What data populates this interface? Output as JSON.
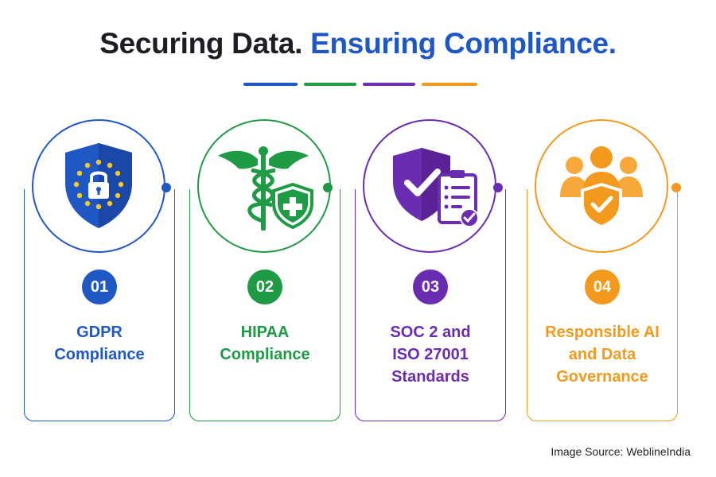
{
  "title": {
    "part1": "Securing Data.",
    "part2": "Ensuring Compliance."
  },
  "colors": {
    "blue": "#1f57c5",
    "green": "#1f9a45",
    "purple": "#6a2cb0",
    "orange": "#f39a1e",
    "dark": "#1d1d24"
  },
  "items": [
    {
      "number": "01",
      "line1": "GDPR",
      "line2": "Compliance",
      "line3": "",
      "icon": "eu-shield-lock-icon",
      "color": "#1f57c5"
    },
    {
      "number": "02",
      "line1": "HIPAA",
      "line2": "Compliance",
      "line3": "",
      "icon": "caduceus-shield-icon",
      "color": "#1f9a45"
    },
    {
      "number": "03",
      "line1": "SOC 2 and",
      "line2": "ISO 27001",
      "line3": "Standards",
      "icon": "shield-checklist-icon",
      "color": "#6a2cb0"
    },
    {
      "number": "04",
      "line1": "Responsible AI",
      "line2": "and Data",
      "line3": "Governance",
      "icon": "people-shield-icon",
      "color": "#f39a1e"
    }
  ],
  "source": "Image Source: WeblineIndia"
}
